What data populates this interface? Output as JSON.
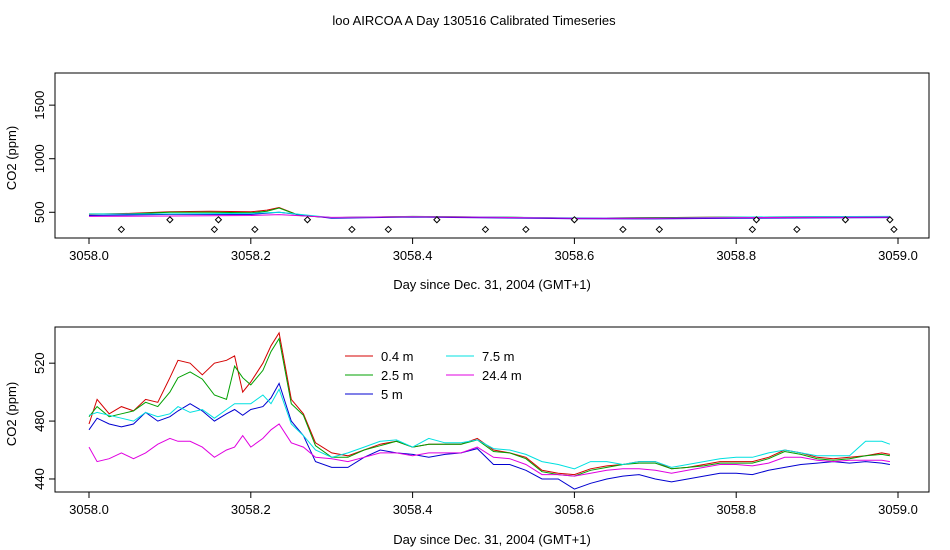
{
  "title": "loo AIRCOA A  Day 130516  Calibrated Timeseries",
  "chart_data": [
    {
      "type": "line",
      "xlabel": "Day since Dec. 31, 2004 (GMT+1)",
      "ylabel": "CO2 (ppm)",
      "xlim": [
        3058.0,
        3059.0
      ],
      "ylim": [
        260,
        1800
      ],
      "x_ticks": [
        "3058.0",
        "3058.2",
        "3058.4",
        "3058.6",
        "3058.8",
        "3059.0"
      ],
      "y_ticks": [
        "500",
        "1000",
        "1500"
      ],
      "grid": false,
      "series": [
        {
          "color": "#d40000",
          "x": [
            3058.0,
            3058.05,
            3058.1,
            3058.15,
            3058.2,
            3058.22,
            3058.235,
            3058.26,
            3058.3,
            3058.4,
            3058.5,
            3058.6,
            3058.7,
            3058.8,
            3058.9,
            3058.99
          ],
          "y": [
            480,
            490,
            505,
            510,
            505,
            520,
            545,
            470,
            450,
            460,
            455,
            445,
            450,
            455,
            458,
            458
          ]
        },
        {
          "color": "#00a000",
          "x": [
            3058.0,
            3058.05,
            3058.1,
            3058.15,
            3058.2,
            3058.22,
            3058.235,
            3058.26,
            3058.3,
            3058.4,
            3058.5,
            3058.6,
            3058.7,
            3058.8,
            3058.9,
            3058.99
          ],
          "y": [
            485,
            485,
            500,
            500,
            495,
            510,
            540,
            470,
            450,
            462,
            455,
            445,
            450,
            455,
            457,
            458
          ]
        },
        {
          "color": "#0000d0",
          "x": [
            3058.0,
            3058.1,
            3058.2,
            3058.235,
            3058.3,
            3058.4,
            3058.5,
            3058.6,
            3058.7,
            3058.8,
            3058.9,
            3058.99
          ],
          "y": [
            470,
            480,
            480,
            500,
            445,
            455,
            448,
            440,
            438,
            445,
            448,
            450
          ]
        },
        {
          "color": "#00e0e0",
          "x": [
            3058.0,
            3058.1,
            3058.2,
            3058.235,
            3058.3,
            3058.4,
            3058.5,
            3058.6,
            3058.7,
            3058.8,
            3058.9,
            3058.99
          ],
          "y": [
            484,
            485,
            490,
            500,
            450,
            460,
            455,
            448,
            445,
            455,
            460,
            462
          ]
        },
        {
          "color": "#e000e0",
          "x": [
            3058.0,
            3058.1,
            3058.2,
            3058.235,
            3058.3,
            3058.4,
            3058.5,
            3058.6,
            3058.7,
            3058.8,
            3058.9,
            3058.99
          ],
          "y": [
            462,
            465,
            470,
            478,
            452,
            458,
            453,
            444,
            444,
            450,
            452,
            455
          ]
        }
      ],
      "markers": {
        "symbol": "diamond",
        "x": [
          3058.04,
          3058.1,
          3058.155,
          3058.16,
          3058.205,
          3058.27,
          3058.325,
          3058.37,
          3058.43,
          3058.49,
          3058.54,
          3058.6,
          3058.66,
          3058.705,
          3058.82,
          3058.825,
          3058.875,
          3058.935,
          3058.99,
          3058.995
        ],
        "y": [
          340,
          430,
          340,
          430,
          340,
          430,
          340,
          340,
          430,
          340,
          340,
          430,
          340,
          340,
          340,
          430,
          340,
          430,
          430,
          340
        ]
      }
    },
    {
      "type": "line",
      "xlabel": "Day since Dec. 31, 2004 (GMT+1)",
      "ylabel": "CO2 (ppm)",
      "xlim": [
        3058.0,
        3059.0
      ],
      "ylim": [
        431,
        545
      ],
      "x_ticks": [
        "3058.0",
        "3058.2",
        "3058.4",
        "3058.6",
        "3058.8",
        "3059.0"
      ],
      "y_ticks": [
        "440",
        "480",
        "520"
      ],
      "grid": false,
      "legend_position": "top-center",
      "series": [
        {
          "name": "0.4 m",
          "color": "#d40000",
          "x": [
            3058.0,
            3058.01,
            3058.025,
            3058.04,
            3058.055,
            3058.07,
            3058.085,
            3058.1,
            3058.11,
            3058.125,
            3058.14,
            3058.155,
            3058.17,
            3058.18,
            3058.19,
            3058.2,
            3058.215,
            3058.225,
            3058.235,
            3058.25,
            3058.265,
            3058.28,
            3058.3,
            3058.32,
            3058.34,
            3058.36,
            3058.38,
            3058.4,
            3058.42,
            3058.44,
            3058.46,
            3058.48,
            3058.5,
            3058.52,
            3058.54,
            3058.56,
            3058.58,
            3058.6,
            3058.62,
            3058.64,
            3058.66,
            3058.68,
            3058.7,
            3058.72,
            3058.74,
            3058.76,
            3058.78,
            3058.8,
            3058.82,
            3058.84,
            3058.86,
            3058.88,
            3058.9,
            3058.92,
            3058.94,
            3058.96,
            3058.98,
            3058.99
          ],
          "y": [
            478,
            495,
            485,
            490,
            487,
            495,
            493,
            510,
            522,
            520,
            512,
            520,
            522,
            525,
            500,
            507,
            520,
            532,
            541,
            495,
            485,
            465,
            458,
            456,
            460,
            464,
            466,
            462,
            464,
            464,
            464,
            468,
            460,
            458,
            455,
            446,
            444,
            443,
            447,
            449,
            450,
            452,
            452,
            447,
            448,
            450,
            452,
            452,
            452,
            455,
            460,
            458,
            455,
            454,
            455,
            456,
            458,
            457
          ]
        },
        {
          "name": "2.5 m",
          "color": "#00a000",
          "x": [
            3058.0,
            3058.01,
            3058.025,
            3058.04,
            3058.055,
            3058.07,
            3058.085,
            3058.1,
            3058.11,
            3058.125,
            3058.14,
            3058.155,
            3058.17,
            3058.18,
            3058.19,
            3058.2,
            3058.215,
            3058.225,
            3058.235,
            3058.25,
            3058.265,
            3058.28,
            3058.3,
            3058.32,
            3058.34,
            3058.36,
            3058.38,
            3058.4,
            3058.42,
            3058.44,
            3058.46,
            3058.48,
            3058.5,
            3058.52,
            3058.54,
            3058.56,
            3058.58,
            3058.6,
            3058.62,
            3058.64,
            3058.66,
            3058.68,
            3058.7,
            3058.72,
            3058.74,
            3058.76,
            3058.78,
            3058.8,
            3058.82,
            3058.84,
            3058.86,
            3058.88,
            3058.9,
            3058.92,
            3058.94,
            3058.96,
            3058.98,
            3058.99
          ],
          "y": [
            483,
            490,
            483,
            485,
            487,
            493,
            490,
            500,
            510,
            514,
            509,
            498,
            495,
            518,
            510,
            505,
            515,
            528,
            537,
            492,
            484,
            463,
            455,
            455,
            460,
            463,
            466,
            462,
            464,
            464,
            464,
            467,
            459,
            458,
            454,
            445,
            443,
            442,
            446,
            448,
            450,
            451,
            451,
            447,
            448,
            449,
            451,
            451,
            451,
            454,
            459,
            457,
            454,
            453,
            454,
            456,
            457,
            456
          ]
        },
        {
          "name": "5 m",
          "color": "#0000d0",
          "x": [
            3058.0,
            3058.01,
            3058.025,
            3058.04,
            3058.055,
            3058.07,
            3058.085,
            3058.1,
            3058.11,
            3058.125,
            3058.14,
            3058.155,
            3058.17,
            3058.18,
            3058.19,
            3058.2,
            3058.215,
            3058.225,
            3058.235,
            3058.25,
            3058.265,
            3058.28,
            3058.3,
            3058.32,
            3058.34,
            3058.36,
            3058.38,
            3058.4,
            3058.42,
            3058.44,
            3058.46,
            3058.48,
            3058.5,
            3058.52,
            3058.54,
            3058.56,
            3058.58,
            3058.6,
            3058.62,
            3058.64,
            3058.66,
            3058.68,
            3058.7,
            3058.72,
            3058.74,
            3058.76,
            3058.78,
            3058.8,
            3058.82,
            3058.84,
            3058.86,
            3058.88,
            3058.9,
            3058.92,
            3058.94,
            3058.96,
            3058.98,
            3058.99
          ],
          "y": [
            474,
            482,
            478,
            476,
            478,
            486,
            480,
            483,
            487,
            492,
            487,
            480,
            485,
            488,
            484,
            488,
            490,
            496,
            506,
            480,
            470,
            452,
            448,
            448,
            455,
            460,
            458,
            457,
            455,
            457,
            458,
            461,
            450,
            450,
            446,
            440,
            440,
            433,
            437,
            440,
            442,
            443,
            440,
            438,
            440,
            442,
            444,
            444,
            443,
            446,
            448,
            450,
            451,
            452,
            451,
            452,
            451,
            450
          ]
        },
        {
          "name": "7.5 m",
          "color": "#00e0e0",
          "x": [
            3058.0,
            3058.01,
            3058.025,
            3058.04,
            3058.055,
            3058.07,
            3058.085,
            3058.1,
            3058.11,
            3058.125,
            3058.14,
            3058.155,
            3058.17,
            3058.18,
            3058.19,
            3058.2,
            3058.215,
            3058.225,
            3058.235,
            3058.25,
            3058.265,
            3058.28,
            3058.3,
            3058.32,
            3058.34,
            3058.36,
            3058.38,
            3058.4,
            3058.42,
            3058.44,
            3058.46,
            3058.48,
            3058.5,
            3058.52,
            3058.54,
            3058.56,
            3058.58,
            3058.6,
            3058.62,
            3058.64,
            3058.66,
            3058.68,
            3058.7,
            3058.72,
            3058.74,
            3058.76,
            3058.78,
            3058.8,
            3058.82,
            3058.84,
            3058.86,
            3058.88,
            3058.9,
            3058.92,
            3058.94,
            3058.96,
            3058.98,
            3058.99
          ],
          "y": [
            484,
            486,
            484,
            482,
            480,
            486,
            483,
            485,
            490,
            486,
            488,
            482,
            488,
            492,
            492,
            492,
            498,
            492,
            502,
            478,
            470,
            460,
            455,
            458,
            462,
            466,
            467,
            462,
            468,
            465,
            465,
            467,
            461,
            460,
            457,
            452,
            450,
            447,
            452,
            452,
            450,
            452,
            452,
            448,
            450,
            452,
            454,
            455,
            455,
            458,
            460,
            458,
            456,
            456,
            456,
            466,
            466,
            464
          ]
        },
        {
          "name": "24.4 m",
          "color": "#e000e0",
          "x": [
            3058.0,
            3058.01,
            3058.025,
            3058.04,
            3058.055,
            3058.07,
            3058.085,
            3058.1,
            3058.11,
            3058.125,
            3058.14,
            3058.155,
            3058.17,
            3058.18,
            3058.19,
            3058.2,
            3058.215,
            3058.225,
            3058.235,
            3058.25,
            3058.265,
            3058.28,
            3058.3,
            3058.32,
            3058.34,
            3058.36,
            3058.38,
            3058.4,
            3058.42,
            3058.44,
            3058.46,
            3058.48,
            3058.5,
            3058.52,
            3058.54,
            3058.56,
            3058.58,
            3058.6,
            3058.62,
            3058.64,
            3058.66,
            3058.68,
            3058.7,
            3058.72,
            3058.74,
            3058.76,
            3058.78,
            3058.8,
            3058.82,
            3058.84,
            3058.86,
            3058.88,
            3058.9,
            3058.92,
            3058.94,
            3058.96,
            3058.98,
            3058.99
          ],
          "y": [
            462,
            452,
            454,
            458,
            454,
            458,
            464,
            468,
            466,
            466,
            462,
            455,
            460,
            462,
            470,
            462,
            468,
            474,
            478,
            465,
            462,
            455,
            454,
            452,
            455,
            458,
            458,
            456,
            458,
            458,
            458,
            462,
            455,
            454,
            450,
            443,
            443,
            442,
            444,
            446,
            447,
            447,
            446,
            444,
            446,
            448,
            450,
            450,
            449,
            451,
            455,
            455,
            453,
            452,
            453,
            453,
            453,
            452
          ]
        }
      ]
    }
  ]
}
